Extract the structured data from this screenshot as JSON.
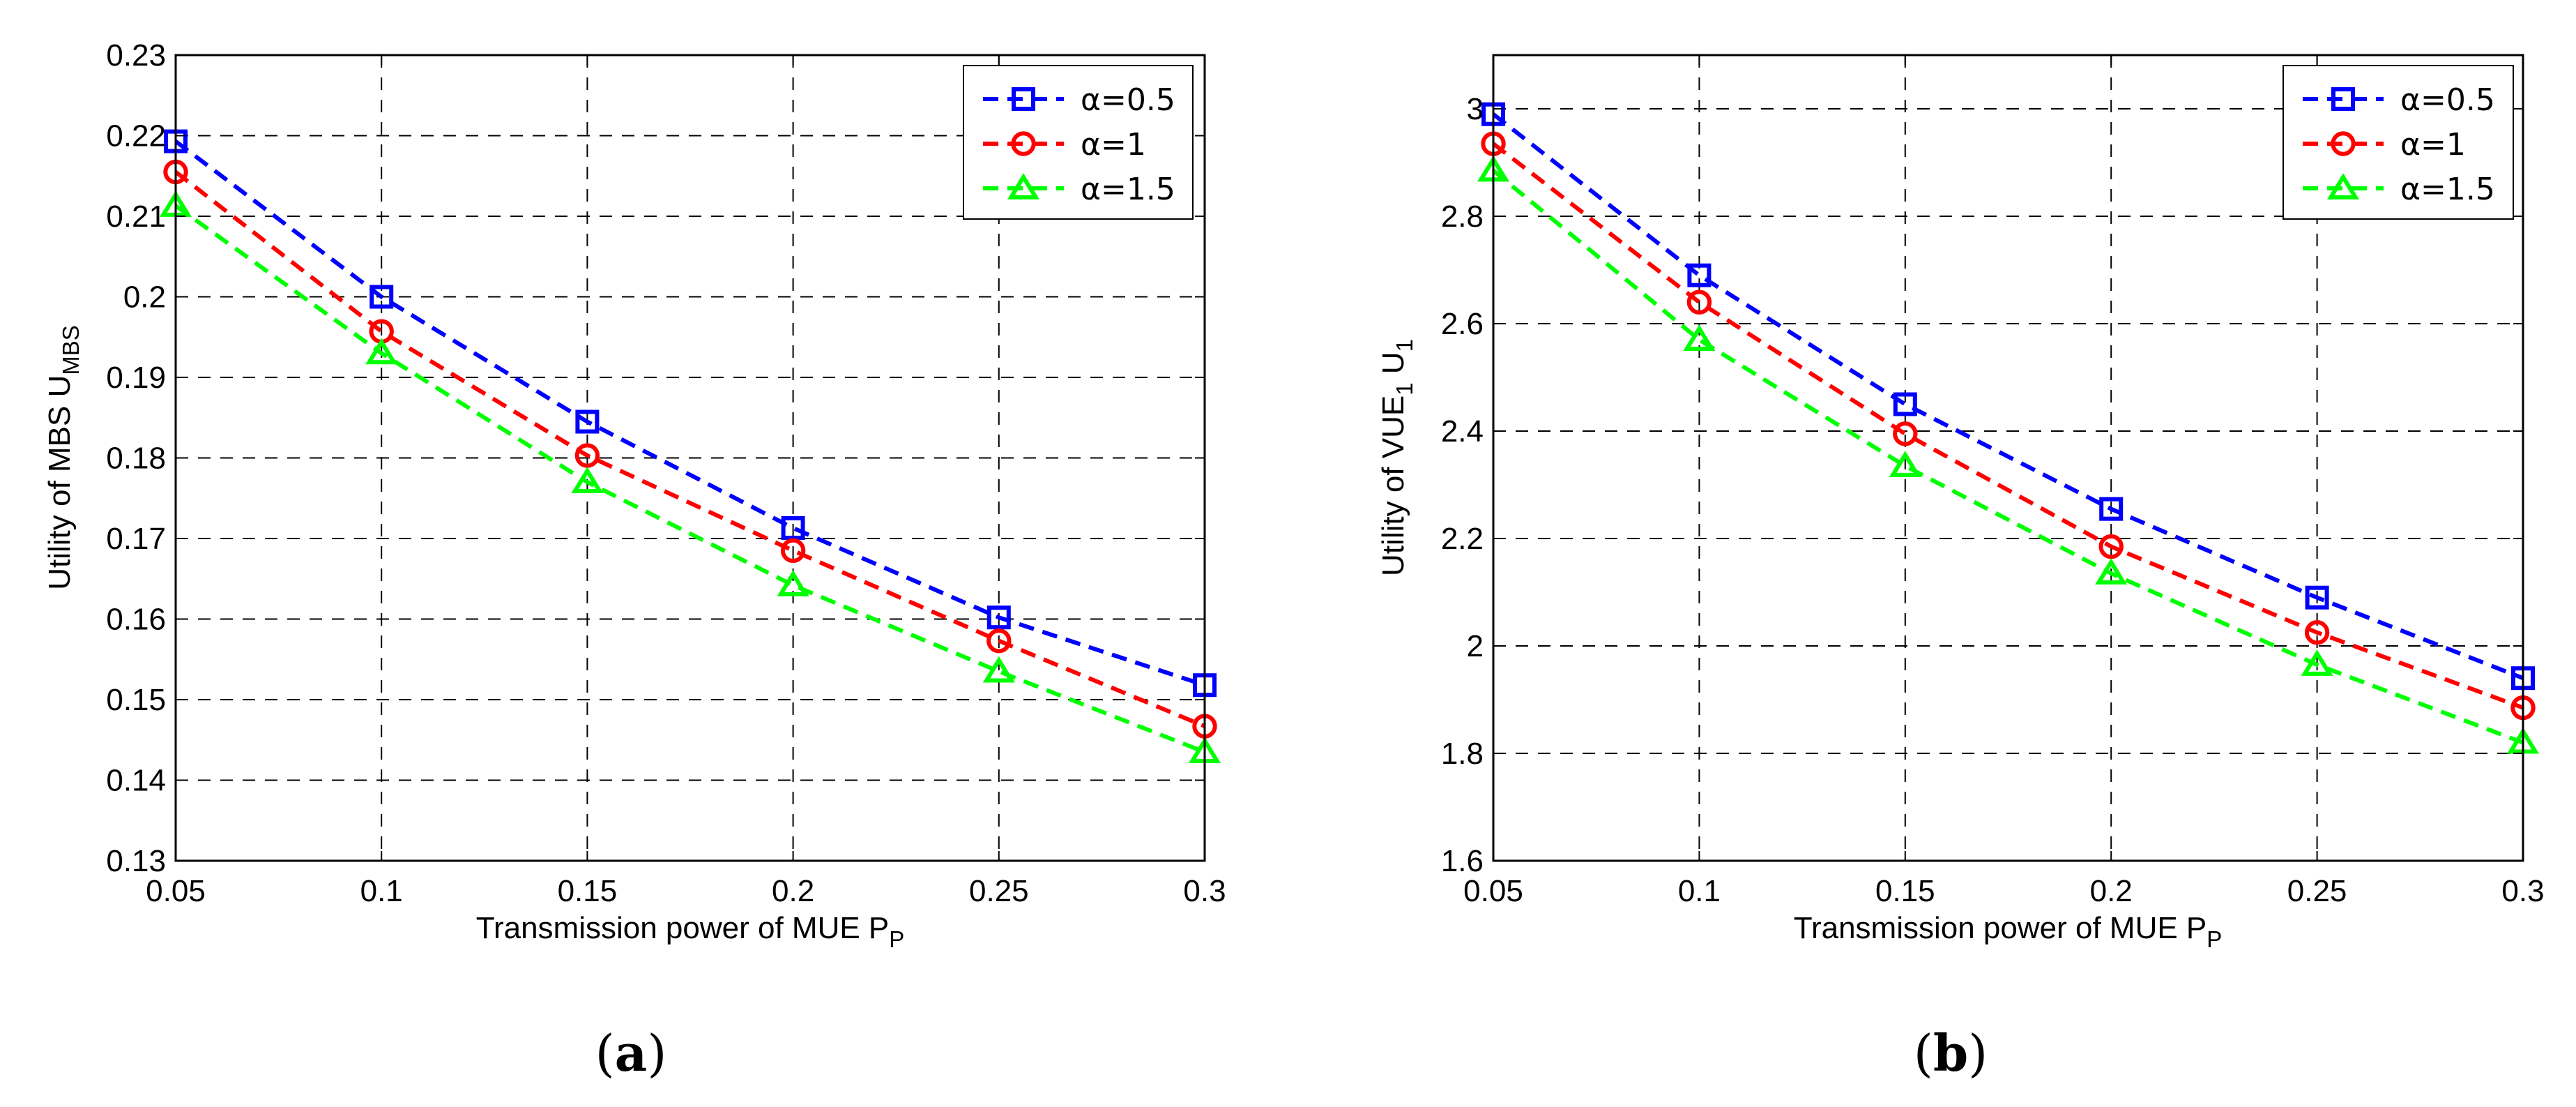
{
  "chart_data": [
    {
      "type": "line",
      "panel_label": "a",
      "title": "",
      "xlabel": "Transmission power of MUE P",
      "xlabel_sub": "P",
      "ylabel": "Utility of MBS U",
      "ylabel_sub": "MBS",
      "x": [
        0.05,
        0.1,
        0.15,
        0.2,
        0.25,
        0.3
      ],
      "xlim": [
        0.05,
        0.3
      ],
      "ylim": [
        0.13,
        0.23
      ],
      "xticks": [
        "0.05",
        "0.1",
        "0.15",
        "0.2",
        "0.25",
        "0.3"
      ],
      "yticks": [
        "0.13",
        "0.14",
        "0.15",
        "0.16",
        "0.17",
        "0.18",
        "0.19",
        "0.2",
        "0.21",
        "0.22",
        "0.23"
      ],
      "grid": true,
      "legend_position": "top-right",
      "series": [
        {
          "name": "α=0.5",
          "color": "#0000FF",
          "marker": "square",
          "values": [
            0.2193,
            0.2,
            0.1845,
            0.1713,
            0.1602,
            0.1518
          ]
        },
        {
          "name": "α=1",
          "color": "#FF0000",
          "marker": "circle",
          "values": [
            0.2155,
            0.1957,
            0.1803,
            0.1685,
            0.1573,
            0.1467
          ]
        },
        {
          "name": "α=1.5",
          "color": "#00FF00",
          "marker": "triangle",
          "values": [
            0.2113,
            0.193,
            0.177,
            0.1642,
            0.1535,
            0.1435
          ]
        }
      ]
    },
    {
      "type": "line",
      "panel_label": "b",
      "title": "",
      "xlabel": "Transmission power of MUE P",
      "xlabel_sub": "P",
      "ylabel": "Utility of VUE",
      "ylabel_sub": "1",
      "ylabel_mid": " U",
      "ylabel_sub2": "1",
      "x": [
        0.05,
        0.1,
        0.15,
        0.2,
        0.25,
        0.3
      ],
      "xlim": [
        0.05,
        0.3
      ],
      "ylim": [
        1.6,
        3.1
      ],
      "xticks": [
        "0.05",
        "0.1",
        "0.15",
        "0.2",
        "0.25",
        "0.3"
      ],
      "yticks": [
        "1.6",
        "1.8",
        "2",
        "2.2",
        "2.4",
        "2.6",
        "2.8",
        "3"
      ],
      "grid": true,
      "legend_position": "top-right",
      "series": [
        {
          "name": "α=0.5",
          "color": "#0000FF",
          "marker": "square",
          "values": [
            2.99,
            2.69,
            2.45,
            2.255,
            2.09,
            1.94
          ]
        },
        {
          "name": "α=1",
          "color": "#FF0000",
          "marker": "circle",
          "values": [
            2.935,
            2.64,
            2.395,
            2.185,
            2.025,
            1.885
          ]
        },
        {
          "name": "α=1.5",
          "color": "#00FF00",
          "marker": "triangle",
          "values": [
            2.885,
            2.57,
            2.335,
            2.135,
            1.965,
            1.82
          ]
        }
      ]
    }
  ],
  "captions": {
    "a": {
      "open": "(",
      "letter": "a",
      "close": ")"
    },
    "b": {
      "open": "(",
      "letter": "b",
      "close": ")"
    }
  }
}
